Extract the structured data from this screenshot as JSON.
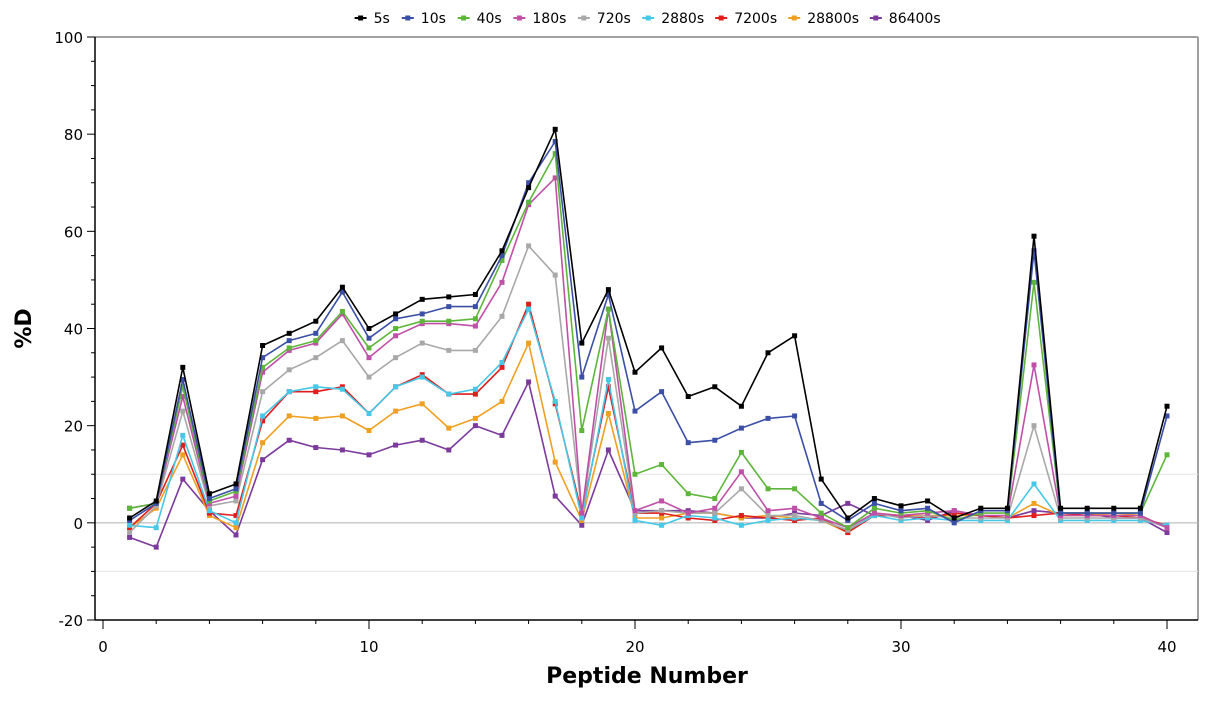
{
  "chart_data": {
    "type": "line",
    "title": "",
    "xlabel": "Peptide Number",
    "ylabel": "%D",
    "xlim": [
      0,
      41
    ],
    "ylim": [
      -20,
      100
    ],
    "xticks": [
      0,
      10,
      20,
      30,
      40
    ],
    "yticks": [
      -20,
      0,
      20,
      40,
      60,
      80,
      100
    ],
    "legend_position": "top",
    "reference_lines": [
      10,
      0,
      -10
    ],
    "x": [
      1,
      2,
      3,
      4,
      5,
      6,
      7,
      8,
      9,
      10,
      11,
      12,
      13,
      14,
      15,
      16,
      17,
      18,
      19,
      20,
      21,
      22,
      23,
      24,
      25,
      26,
      27,
      28,
      29,
      30,
      31,
      32,
      33,
      34,
      35,
      36,
      37,
      38,
      39,
      40
    ],
    "series": [
      {
        "name": "5s",
        "color": "#000000",
        "values": [
          1,
          4.5,
          32,
          6,
          8,
          36.5,
          39,
          41.5,
          48.5,
          40,
          43,
          46,
          46.5,
          47,
          56,
          69,
          81,
          37,
          48,
          31,
          36,
          26,
          28,
          24,
          35,
          38.5,
          9,
          1,
          5,
          3.5,
          4.5,
          1,
          3,
          3,
          59,
          3,
          3,
          3,
          3,
          24
        ]
      },
      {
        "name": "10s",
        "color": "#3b4fa6",
        "values": [
          0.5,
          4,
          29.5,
          5,
          7,
          34,
          37.5,
          39,
          47.5,
          38,
          42,
          43,
          44.5,
          44.5,
          55,
          70,
          78.5,
          30,
          47,
          23,
          27,
          16.5,
          17,
          19.5,
          21.5,
          22,
          4,
          0.5,
          4,
          2.5,
          3,
          0,
          2.5,
          2.5,
          56,
          2,
          2,
          2,
          2,
          22
        ]
      },
      {
        "name": "40s",
        "color": "#5db53a",
        "values": [
          3,
          4,
          28,
          4.5,
          6.5,
          32,
          36,
          37.5,
          43.5,
          36,
          40,
          41.5,
          41.5,
          42,
          54,
          66,
          76,
          19,
          44,
          10,
          12,
          6,
          5,
          14.5,
          7,
          7,
          2,
          -1,
          3,
          2,
          2.5,
          0.5,
          2,
          2,
          49.5,
          2,
          2,
          2,
          2,
          14
        ]
      },
      {
        "name": "180s",
        "color": "#c04fa8",
        "values": [
          3,
          4,
          26,
          4,
          5.5,
          31,
          35.5,
          37,
          43,
          34,
          38.5,
          41,
          41,
          40.5,
          49.5,
          65.5,
          71,
          2,
          44,
          2.5,
          4.5,
          2,
          3,
          10.5,
          2.5,
          3,
          1,
          -1,
          2,
          1.5,
          2,
          2.5,
          1.5,
          1.5,
          32.5,
          1.5,
          1.5,
          1.5,
          1.5,
          -1
        ]
      },
      {
        "name": "720s",
        "color": "#a8a8a8",
        "values": [
          -2,
          3.5,
          23,
          3.5,
          4.5,
          27,
          31.5,
          34,
          37.5,
          30,
          34,
          37,
          35.5,
          35.5,
          42.5,
          57,
          51,
          2,
          38,
          2,
          2.5,
          2,
          2,
          7,
          1.5,
          1.5,
          0.5,
          -1.5,
          2,
          1,
          1.5,
          1,
          1,
          1,
          20,
          1,
          1,
          1,
          1,
          -1
        ]
      },
      {
        "name": "2880s",
        "color": "#46c8e8",
        "values": [
          -0.5,
          -1,
          18,
          2.5,
          0,
          22,
          27,
          28,
          27.5,
          22.5,
          28,
          30,
          26.5,
          27.5,
          33,
          44,
          25,
          1,
          29.5,
          0.5,
          -0.5,
          1.5,
          1,
          -0.5,
          0.5,
          1,
          0.5,
          -1.5,
          1.5,
          0.5,
          1,
          0.5,
          0.5,
          0.5,
          8,
          0.5,
          0.5,
          0.5,
          0.5,
          -0.5
        ]
      },
      {
        "name": "7200s",
        "color": "#e01c1c",
        "values": [
          -1,
          4,
          16,
          2,
          1.5,
          21,
          27,
          27,
          28,
          22.5,
          28,
          30.5,
          26.5,
          26.5,
          32,
          45,
          24.5,
          2,
          28,
          2,
          2,
          1,
          0.5,
          1.5,
          1,
          0.5,
          1,
          -2,
          1.5,
          1.5,
          1,
          2,
          1.5,
          1,
          1.5,
          2,
          1.5,
          1.5,
          1,
          -0.5
        ]
      },
      {
        "name": "28800s",
        "color": "#f0a020",
        "values": [
          -1,
          3,
          14,
          1.5,
          -1,
          16.5,
          22,
          21.5,
          22,
          19,
          23,
          24.5,
          19.5,
          21.5,
          25,
          37,
          12.5,
          0.5,
          22.5,
          1,
          1,
          2,
          2,
          1,
          1.5,
          1,
          0.5,
          -2,
          2,
          1.5,
          1.5,
          1.5,
          1.5,
          1,
          4,
          1.5,
          1.5,
          2,
          1.5,
          -1
        ]
      },
      {
        "name": "86400s",
        "color": "#7b3a9c",
        "values": [
          -3,
          -5,
          9,
          2.5,
          -2.5,
          13,
          17,
          15.5,
          15,
          14,
          16,
          17,
          15,
          20,
          18,
          29,
          5.5,
          -0.5,
          15,
          2.5,
          2.5,
          2.5,
          2,
          1,
          1,
          2,
          1.5,
          4,
          1.5,
          1.5,
          0.5,
          2.5,
          1.5,
          1,
          2.5,
          2,
          2,
          1,
          1,
          -2
        ]
      }
    ]
  }
}
